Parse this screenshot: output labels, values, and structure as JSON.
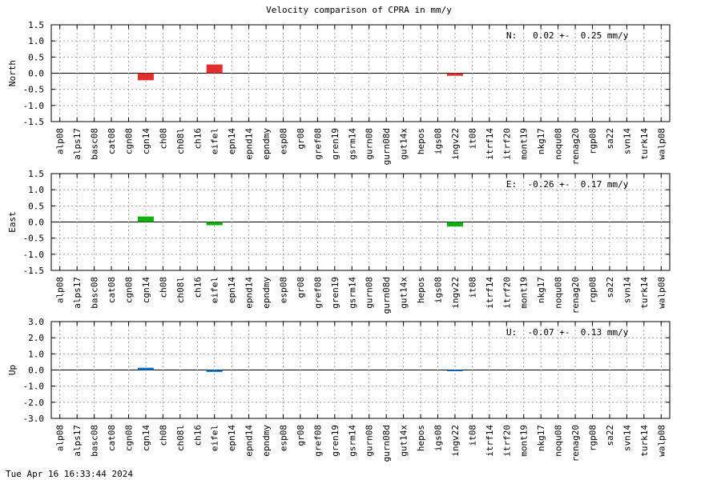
{
  "chart_data": {
    "title": "Velocity comparison of CPRA in mm/y",
    "type": "bar",
    "categories": [
      "alp08",
      "alps17",
      "basc08",
      "cat08",
      "cgn08",
      "cgn14",
      "ch08",
      "ch08l",
      "ch16",
      "eifel",
      "epn14",
      "epnd14",
      "epndmy",
      "esp08",
      "gr08",
      "gref08",
      "gren19",
      "gsrm14",
      "gurn08",
      "gurn08d",
      "gut14x",
      "hepos",
      "igs08",
      "ingv22",
      "it08",
      "itrf14",
      "itrf20",
      "mont19",
      "nkg17",
      "noqu08",
      "renag20",
      "rgp08",
      "sa22",
      "svn14",
      "turk14",
      "walp08"
    ],
    "panels": [
      {
        "ylabel": "North",
        "ylim": [
          -1.5,
          1.5
        ],
        "yticks": [
          "1.5",
          "1.0",
          "0.5",
          "0.0",
          "-0.5",
          "-1.0",
          "-1.5"
        ],
        "ytick_values": [
          1.5,
          1.0,
          0.5,
          0.0,
          -0.5,
          -1.0,
          -1.5
        ],
        "color": "#e03030",
        "summary": "N:   0.02 +-  0.25 mm/y",
        "values": [
          null,
          null,
          null,
          null,
          null,
          -0.22,
          null,
          null,
          null,
          0.27,
          null,
          null,
          null,
          null,
          null,
          null,
          null,
          null,
          null,
          null,
          null,
          null,
          null,
          -0.08,
          null,
          null,
          null,
          null,
          null,
          null,
          null,
          null,
          null,
          null,
          null,
          null
        ]
      },
      {
        "ylabel": "East",
        "ylim": [
          -1.5,
          1.5
        ],
        "yticks": [
          "1.5",
          "1.0",
          "0.5",
          "0.0",
          "-0.5",
          "-1.0",
          "-1.5"
        ],
        "ytick_values": [
          1.5,
          1.0,
          0.5,
          0.0,
          -0.5,
          -1.0,
          -1.5
        ],
        "color": "#10b010",
        "summary": "E:  -0.26 +-  0.17 mm/y",
        "values": [
          null,
          null,
          null,
          null,
          null,
          0.17,
          null,
          null,
          null,
          -0.1,
          null,
          null,
          null,
          null,
          null,
          null,
          null,
          null,
          null,
          null,
          null,
          null,
          null,
          -0.14,
          null,
          null,
          null,
          null,
          null,
          null,
          null,
          null,
          null,
          null,
          null,
          null
        ]
      },
      {
        "ylabel": "Up",
        "ylim": [
          -3.0,
          3.0
        ],
        "yticks": [
          "3.0",
          "2.0",
          "1.0",
          "0.0",
          "-1.0",
          "-2.0",
          "-3.0"
        ],
        "ytick_values": [
          3.0,
          2.0,
          1.0,
          0.0,
          -1.0,
          -2.0,
          -3.0
        ],
        "color": "#1070d0",
        "summary": "U:  -0.07 +-  0.13 mm/y",
        "values": [
          null,
          null,
          null,
          null,
          null,
          0.14,
          null,
          null,
          null,
          -0.12,
          null,
          null,
          null,
          null,
          null,
          null,
          null,
          null,
          null,
          null,
          null,
          null,
          null,
          -0.05,
          null,
          null,
          null,
          null,
          null,
          null,
          null,
          null,
          null,
          null,
          null,
          null
        ]
      }
    ],
    "grid": true
  },
  "footer": {
    "timestamp": "Tue Apr 16 16:33:44 2024"
  }
}
